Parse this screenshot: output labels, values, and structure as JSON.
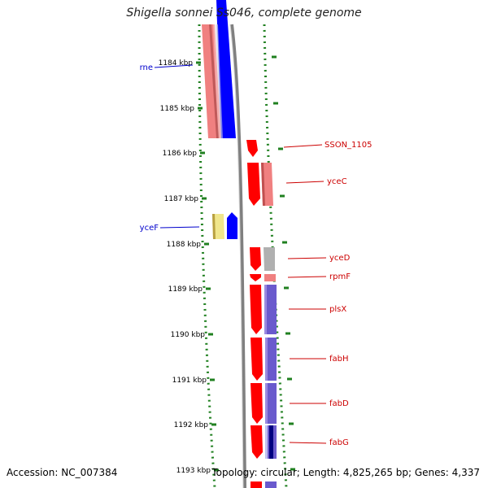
{
  "title": "Shigella sonnei Ss046, complete genome",
  "accession_text": "Accession: NC_007384",
  "summary_text": "Topology: circular; Length: 4,825,265 bp; Genes: 4,337",
  "colors": {
    "backbone": "#808080",
    "tick": "#208020",
    "forward_gene": "#ff0000",
    "reverse_gene": "#0000ff",
    "forward_label": "#cc0000",
    "reverse_label": "#0000cc",
    "rrna_pink": "#f08080",
    "rna_gray": "#b0b0b0",
    "cog_purple": "#6a5acd",
    "yellow": "#f0e68c"
  },
  "ruler": {
    "unit": "kbp",
    "labels": [
      "1184 kbp",
      "1185 kbp",
      "1186 kbp",
      "1187 kbp",
      "1188 kbp",
      "1189 kbp",
      "1190 kbp",
      "1191 kbp",
      "1192 kbp",
      "1193 kbp"
    ]
  },
  "genes": [
    {
      "name": "rne",
      "strand": "reverse"
    },
    {
      "name": "SSON_1105",
      "strand": "forward"
    },
    {
      "name": "yceC",
      "strand": "forward"
    },
    {
      "name": "yceF",
      "strand": "reverse"
    },
    {
      "name": "yceD",
      "strand": "forward"
    },
    {
      "name": "rpmF",
      "strand": "forward"
    },
    {
      "name": "plsX",
      "strand": "forward"
    },
    {
      "name": "fabH",
      "strand": "forward"
    },
    {
      "name": "fabD",
      "strand": "forward"
    },
    {
      "name": "fabG",
      "strand": "forward"
    }
  ]
}
